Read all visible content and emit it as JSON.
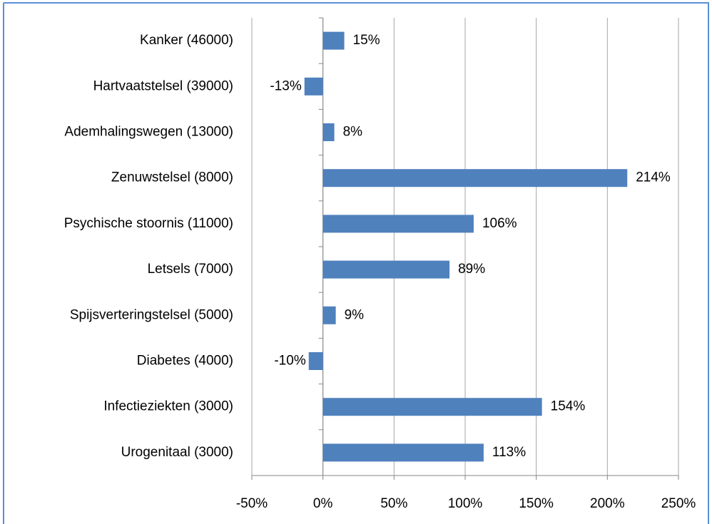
{
  "chart_data": {
    "type": "barh",
    "categories": [
      "Kanker (46000)",
      "Hartvaatstelsel (39000)",
      "Ademhalingswegen (13000)",
      "Zenuwstelsel (8000)",
      "Psychische stoornis (11000)",
      "Letsels (7000)",
      "Spijsverteringstelsel (5000)",
      "Diabetes (4000)",
      "Infectieziekten (3000)",
      "Urogenitaal (3000)"
    ],
    "values": [
      15,
      -13,
      8,
      214,
      106,
      89,
      9,
      -10,
      154,
      113
    ],
    "value_labels": [
      "15%",
      "-13%",
      "8%",
      "214%",
      "106%",
      "89%",
      "9%",
      "-10%",
      "154%",
      "113%"
    ],
    "color": "#4f81bd",
    "xlim": [
      -50,
      250
    ],
    "xticks": [
      {
        "value": -50,
        "label": "-50%"
      },
      {
        "value": 0,
        "label": "0%"
      },
      {
        "value": 50,
        "label": "50%"
      },
      {
        "value": 100,
        "label": "100%"
      },
      {
        "value": 150,
        "label": "150%"
      },
      {
        "value": 200,
        "label": "200%"
      },
      {
        "value": 250,
        "label": "250%"
      }
    ],
    "grid": true
  }
}
